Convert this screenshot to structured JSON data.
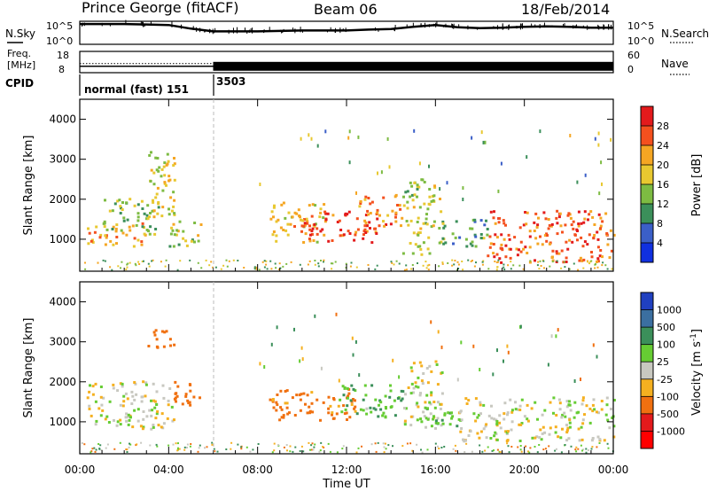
{
  "header": {
    "station": "Prince George (fitACF)",
    "beam": "Beam 06",
    "date": "18/Feb/2014"
  },
  "chart_data": [
    {
      "type": "line",
      "name": "noise",
      "ylabel": "N.Sky",
      "right_label": "N.Search",
      "left_ticks": [
        "10^5",
        "10^0"
      ],
      "right_ticks": [
        "10^5",
        "10^0"
      ],
      "x_hours": [
        0,
        1,
        2,
        3,
        4,
        5,
        6,
        7,
        8,
        9,
        10,
        11,
        12,
        13,
        14,
        15,
        16,
        17,
        18,
        19,
        20,
        21,
        22,
        23,
        24
      ],
      "y_log_sky": [
        4.4,
        4.4,
        4.4,
        4.3,
        4.2,
        3.4,
        2.8,
        2.8,
        2.8,
        2.9,
        3.0,
        3.0,
        3.0,
        3.2,
        3.3,
        3.8,
        4.2,
        3.7,
        3.5,
        3.6,
        3.8,
        3.9,
        3.8,
        3.6,
        3.6
      ],
      "ylim_log": [
        0,
        5
      ]
    },
    {
      "type": "line",
      "name": "frequency",
      "ylabel_1": "Freq.",
      "ylabel_2": "[MHz]",
      "left_ticks": [
        "18",
        "8"
      ],
      "right_ticks": [
        "60",
        "0"
      ],
      "right_label": "Nave",
      "segments": [
        {
          "x_start": 0,
          "x_end": 6,
          "freq_mhz": 11.0,
          "style": "dotted-line"
        },
        {
          "x_start": 6,
          "x_end": 24,
          "freq_mhz": 11.0,
          "style": "dense-bars"
        }
      ]
    },
    {
      "type": "table",
      "name": "cpid",
      "label": "CPID",
      "modes": [
        {
          "x_start": 0,
          "label": "normal (fast) 151"
        },
        {
          "x_start": 6,
          "label": "3503"
        }
      ]
    },
    {
      "type": "heatmap",
      "name": "power",
      "ylabel": "Slant Range [km]",
      "yticks": [
        1000,
        2000,
        3000,
        4000
      ],
      "ylim": [
        200,
        4500
      ],
      "xlim": [
        0,
        24
      ],
      "colorbar": {
        "label": "Power [dB]",
        "ticks": [
          "28",
          "24",
          "20",
          "16",
          "12",
          "8",
          "4"
        ],
        "colors": [
          "#e31a1c",
          "#f4501e",
          "#f5a623",
          "#e8c830",
          "#7dbb42",
          "#3b8f5a",
          "#3b5fc8",
          "#1030e0"
        ]
      },
      "regions": [
        {
          "x": [
            0.3,
            3.0
          ],
          "y": [
            800,
            1400
          ],
          "value": 20
        },
        {
          "x": [
            1.0,
            3.5
          ],
          "y": [
            1100,
            2000
          ],
          "value": 12
        },
        {
          "x": [
            3.0,
            4.3
          ],
          "y": [
            1500,
            3300
          ],
          "value": 16
        },
        {
          "x": [
            4.0,
            5.5
          ],
          "y": [
            800,
            1500
          ],
          "value": 14
        },
        {
          "x": [
            8.5,
            11.0
          ],
          "y": [
            900,
            1900
          ],
          "value": 18
        },
        {
          "x": [
            10.0,
            13.5
          ],
          "y": [
            900,
            1700
          ],
          "value": 26
        },
        {
          "x": [
            12.5,
            14.5
          ],
          "y": [
            1300,
            2100
          ],
          "value": 22
        },
        {
          "x": [
            14.5,
            16.2
          ],
          "y": [
            600,
            2500
          ],
          "value": 14
        },
        {
          "x": [
            16.0,
            18.3
          ],
          "y": [
            800,
            1500
          ],
          "value": 10
        },
        {
          "x": [
            18.3,
            24.0
          ],
          "y": [
            400,
            1700
          ],
          "value": 24
        }
      ]
    },
    {
      "type": "heatmap",
      "name": "velocity",
      "ylabel": "Slant Range [km]",
      "yticks": [
        1000,
        2000,
        3000,
        4000
      ],
      "ylim": [
        200,
        4500
      ],
      "xlim": [
        0,
        24
      ],
      "xlabel": "Time UT",
      "xticks": [
        "00:00",
        "04:00",
        "08:00",
        "12:00",
        "16:00",
        "20:00",
        "00:00"
      ],
      "colorbar": {
        "label": "Velocity [m s",
        "label_sup": "-1",
        "label_end": "]",
        "ticks": [
          "1000",
          "500",
          "100",
          "25",
          "-25",
          "-100",
          "-500",
          "-1000"
        ],
        "colors": [
          "#2040c0",
          "#3b6fa0",
          "#3b8f5a",
          "#66cc33",
          "#c8c8c0",
          "#f5b020",
          "#f07010",
          "#e31a1c",
          "#ff0000"
        ]
      },
      "regions": [
        {
          "x": [
            0.3,
            4.2
          ],
          "y": [
            800,
            2000
          ],
          "value": 0
        },
        {
          "x": [
            3.0,
            4.3
          ],
          "y": [
            2800,
            3300
          ],
          "value": -300
        },
        {
          "x": [
            4.0,
            5.5
          ],
          "y": [
            1400,
            2000
          ],
          "value": -200
        },
        {
          "x": [
            8.5,
            12.5
          ],
          "y": [
            1000,
            1800
          ],
          "value": -150
        },
        {
          "x": [
            11.5,
            14.5
          ],
          "y": [
            1100,
            1900
          ],
          "value": 80
        },
        {
          "x": [
            14.5,
            16.3
          ],
          "y": [
            800,
            2500
          ],
          "value": 0
        },
        {
          "x": [
            15.5,
            17.0
          ],
          "y": [
            800,
            1400
          ],
          "value": 100
        },
        {
          "x": [
            17.0,
            24.0
          ],
          "y": [
            500,
            1600
          ],
          "value": 0
        }
      ]
    }
  ]
}
